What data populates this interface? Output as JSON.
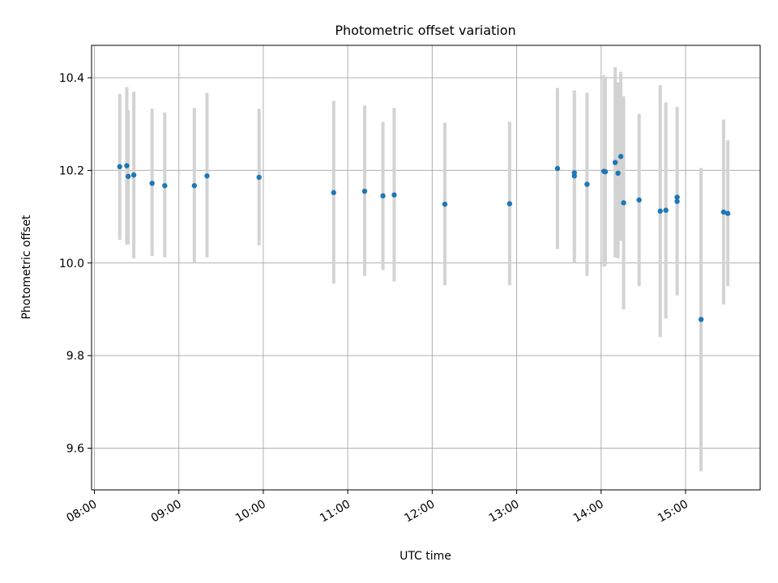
{
  "chart_data": {
    "type": "scatter",
    "title": "Photometric offset variation",
    "xlabel": "UTC time",
    "ylabel": "Photometric offset",
    "x_format": "HH:MM",
    "xlim": [
      "07:58",
      "15:53"
    ],
    "ylim": [
      9.51,
      10.47
    ],
    "xticks": [
      "08:00",
      "09:00",
      "10:00",
      "11:00",
      "12:00",
      "13:00",
      "14:00",
      "15:00"
    ],
    "yticks": [
      9.6,
      9.8,
      10.0,
      10.2,
      10.4
    ],
    "grid": true,
    "point_color": "#1f77b4",
    "errorbar_color": "#d3d3d3",
    "series": [
      {
        "points": [
          {
            "x": "08:18",
            "y": 10.208,
            "ylow": 10.05,
            "yhigh": 10.365
          },
          {
            "x": "08:23",
            "y": 10.21,
            "ylow": 10.04,
            "yhigh": 10.38
          },
          {
            "x": "08:24",
            "y": 10.187,
            "ylow": 10.04,
            "yhigh": 10.33
          },
          {
            "x": "08:28",
            "y": 10.19,
            "ylow": 10.01,
            "yhigh": 10.37
          },
          {
            "x": "08:41",
            "y": 10.172,
            "ylow": 10.015,
            "yhigh": 10.333
          },
          {
            "x": "08:50",
            "y": 10.167,
            "ylow": 10.012,
            "yhigh": 10.325
          },
          {
            "x": "09:11",
            "y": 10.167,
            "ylow": 10.0,
            "yhigh": 10.335
          },
          {
            "x": "09:20",
            "y": 10.188,
            "ylow": 10.012,
            "yhigh": 10.367
          },
          {
            "x": "09:57",
            "y": 10.185,
            "ylow": 10.038,
            "yhigh": 10.333
          },
          {
            "x": "10:50",
            "y": 10.152,
            "ylow": 9.955,
            "yhigh": 10.35
          },
          {
            "x": "11:12",
            "y": 10.155,
            "ylow": 9.972,
            "yhigh": 10.34
          },
          {
            "x": "11:25",
            "y": 10.145,
            "ylow": 9.985,
            "yhigh": 10.305
          },
          {
            "x": "11:33",
            "y": 10.147,
            "ylow": 9.96,
            "yhigh": 10.335
          },
          {
            "x": "12:09",
            "y": 10.127,
            "ylow": 9.952,
            "yhigh": 10.303
          },
          {
            "x": "12:55",
            "y": 10.128,
            "ylow": 9.952,
            "yhigh": 10.305
          },
          {
            "x": "13:29",
            "y": 10.204,
            "ylow": 10.03,
            "yhigh": 10.378
          },
          {
            "x": "13:41",
            "y": 10.195,
            "ylow": 10.02,
            "yhigh": 10.373
          },
          {
            "x": "13:41",
            "y": 10.188,
            "ylow": 10.0,
            "yhigh": 10.37
          },
          {
            "x": "13:50",
            "y": 10.17,
            "ylow": 9.972,
            "yhigh": 10.368
          },
          {
            "x": "14:02",
            "y": 10.198,
            "ylow": 9.992,
            "yhigh": 10.405
          },
          {
            "x": "14:03",
            "y": 10.197,
            "ylow": 9.995,
            "yhigh": 10.4
          },
          {
            "x": "14:10",
            "y": 10.217,
            "ylow": 10.012,
            "yhigh": 10.423
          },
          {
            "x": "14:12",
            "y": 10.194,
            "ylow": 10.01,
            "yhigh": 10.39
          },
          {
            "x": "14:14",
            "y": 10.23,
            "ylow": 10.048,
            "yhigh": 10.413
          },
          {
            "x": "14:16",
            "y": 10.13,
            "ylow": 9.9,
            "yhigh": 10.36
          },
          {
            "x": "14:27",
            "y": 10.136,
            "ylow": 9.95,
            "yhigh": 10.322
          },
          {
            "x": "14:42",
            "y": 10.112,
            "ylow": 9.84,
            "yhigh": 10.384
          },
          {
            "x": "14:46",
            "y": 10.114,
            "ylow": 9.88,
            "yhigh": 10.347
          },
          {
            "x": "14:54",
            "y": 10.133,
            "ylow": 9.93,
            "yhigh": 10.337
          },
          {
            "x": "14:54",
            "y": 10.142,
            "ylow": 9.95,
            "yhigh": 10.335
          },
          {
            "x": "15:11",
            "y": 9.878,
            "ylow": 9.55,
            "yhigh": 10.205
          },
          {
            "x": "15:27",
            "y": 10.11,
            "ylow": 9.91,
            "yhigh": 10.31
          },
          {
            "x": "15:30",
            "y": 10.107,
            "ylow": 9.95,
            "yhigh": 10.265
          }
        ]
      }
    ]
  }
}
